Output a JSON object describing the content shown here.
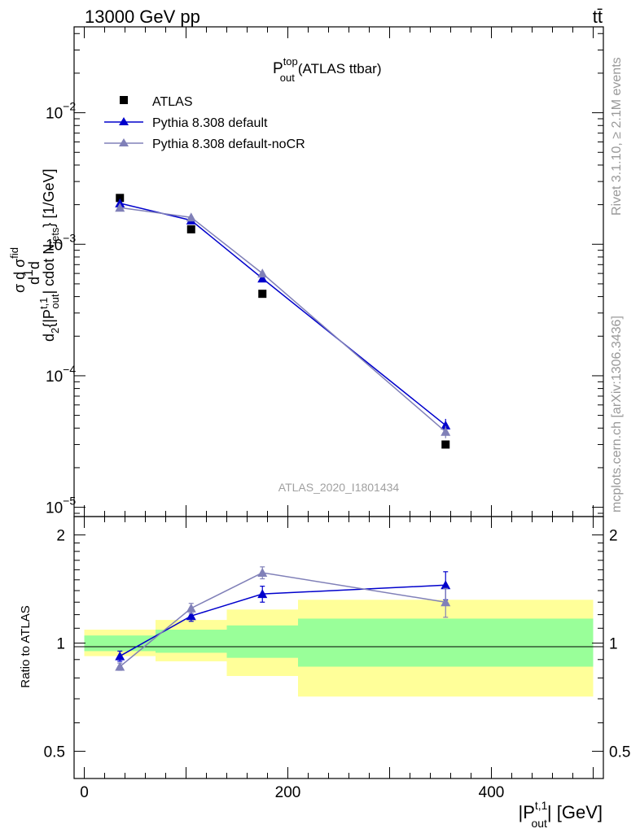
{
  "header": {
    "left": "13000 GeV pp",
    "right": "tt̄"
  },
  "side": {
    "rivet": "Rivet 3.1.10, ≥ 2.1M events",
    "mcplots": "mcplots.cern.ch [arXiv:1306.3436]"
  },
  "chart_data": [
    {
      "type": "scatter",
      "title": "P_out^top (ATLAS ttbar)",
      "watermark": "ATLAS_2020_I1801434",
      "ylabel": "d(1/σ dσ^{fid}/d^2{|P_out^{t,1}| cdot N_jets}) [1/GeV]",
      "yscale": "log",
      "ylim": [
        8.5e-06,
        0.045
      ],
      "xlim": [
        -10,
        510
      ],
      "yticks": [
        "10^-5",
        "10^-4",
        "10^-3",
        "10^-2"
      ],
      "legend_position": "top-left",
      "series": [
        {
          "name": "ATLAS",
          "color": "#000000",
          "marker": "square",
          "x": [
            35,
            105,
            175,
            355
          ],
          "y": [
            0.00225,
            0.0013,
            0.00042,
            3e-05
          ]
        },
        {
          "name": "Pythia 8.308 default",
          "color": "#0000cc",
          "marker": "triangle",
          "x": [
            35,
            105,
            175,
            355
          ],
          "y": [
            0.00205,
            0.00152,
            0.00055,
            4.2e-05
          ],
          "err_y": [
            5e-05,
            4e-05,
            2e-05,
            5e-06
          ]
        },
        {
          "name": "Pythia 8.308 default-noCR",
          "color": "#8080b8",
          "marker": "triangle",
          "x": [
            35,
            105,
            175,
            355
          ],
          "y": [
            0.0019,
            0.0016,
            0.0006,
            3.75e-05
          ],
          "err_y": [
            5e-05,
            4e-05,
            2e-05,
            4e-06
          ]
        }
      ]
    },
    {
      "type": "scatter",
      "ylabel": "Ratio to ATLAS",
      "xlabel": "|P_out^{t,1}| [GeV]",
      "ylim": [
        0.42,
        2.25
      ],
      "yscale": "log",
      "xlim": [
        -10,
        510
      ],
      "xticks": [
        0,
        200,
        400
      ],
      "yticks": [
        0.5,
        1,
        2
      ],
      "bins": [
        {
          "x": [
            0,
            70
          ],
          "stat": [
            0.95,
            1.05
          ],
          "total": [
            0.92,
            1.09
          ]
        },
        {
          "x": [
            70,
            140
          ],
          "stat": [
            0.94,
            1.09
          ],
          "total": [
            0.89,
            1.16
          ]
        },
        {
          "x": [
            140,
            210
          ],
          "stat": [
            0.91,
            1.12
          ],
          "total": [
            0.81,
            1.24
          ]
        },
        {
          "x": [
            210,
            500
          ],
          "stat": [
            0.86,
            1.17
          ],
          "total": [
            0.71,
            1.32
          ]
        }
      ],
      "series": [
        {
          "name": "Pythia 8.308 default",
          "color": "#0000cc",
          "x": [
            35,
            105,
            175,
            355
          ],
          "y": [
            0.92,
            1.19,
            1.37,
            1.45
          ],
          "err": [
            0.03,
            0.04,
            0.07,
            0.13
          ]
        },
        {
          "name": "Pythia 8.308 default-noCR",
          "color": "#8080b8",
          "x": [
            35,
            105,
            175,
            355
          ],
          "y": [
            0.86,
            1.25,
            1.57,
            1.3
          ],
          "err": [
            0.02,
            0.04,
            0.06,
            0.12
          ]
        }
      ]
    }
  ]
}
